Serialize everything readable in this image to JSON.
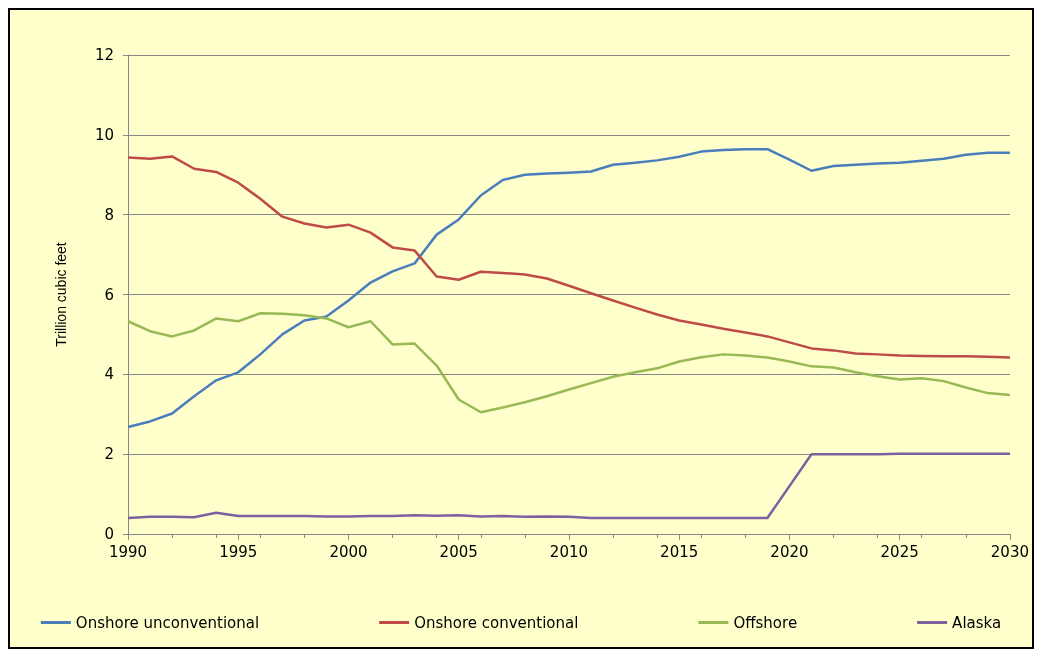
{
  "chart_data": {
    "type": "line",
    "ylabel": "Trillion cubic feet",
    "x": [
      1990,
      1991,
      1992,
      1993,
      1994,
      1995,
      1996,
      1997,
      1998,
      1999,
      2000,
      2001,
      2002,
      2003,
      2004,
      2005,
      2006,
      2007,
      2008,
      2009,
      2010,
      2011,
      2012,
      2013,
      2014,
      2015,
      2016,
      2017,
      2018,
      2019,
      2020,
      2021,
      2022,
      2023,
      2024,
      2025,
      2026,
      2027,
      2028,
      2029,
      2030
    ],
    "series": [
      {
        "name": "Onshore unconventional",
        "color": "#4a7ebb",
        "values": [
          2.68,
          2.82,
          3.02,
          3.45,
          3.85,
          4.05,
          4.5,
          5.0,
          5.35,
          5.45,
          5.85,
          6.3,
          6.58,
          6.78,
          7.5,
          7.88,
          8.48,
          8.87,
          9.0,
          9.03,
          9.05,
          9.08,
          9.25,
          9.3,
          9.36,
          9.45,
          9.58,
          9.62,
          9.64,
          9.64,
          9.38,
          9.1,
          9.22,
          9.25,
          9.28,
          9.3,
          9.35,
          9.4,
          9.5,
          9.55,
          9.55
        ]
      },
      {
        "name": "Onshore conventional",
        "color": "#be4b48",
        "values": [
          9.43,
          9.4,
          9.46,
          9.15,
          9.07,
          8.8,
          8.4,
          7.95,
          7.78,
          7.68,
          7.75,
          7.55,
          7.18,
          7.1,
          6.45,
          6.37,
          6.57,
          6.54,
          6.5,
          6.4,
          6.22,
          6.03,
          5.85,
          5.67,
          5.5,
          5.35,
          5.25,
          5.14,
          5.05,
          4.95,
          4.8,
          4.65,
          4.6,
          4.52,
          4.5,
          4.47,
          4.46,
          4.45,
          4.45,
          4.44,
          4.42
        ]
      },
      {
        "name": "Offshore",
        "color": "#98b954",
        "values": [
          5.33,
          5.08,
          4.95,
          5.1,
          5.4,
          5.33,
          5.53,
          5.52,
          5.48,
          5.4,
          5.18,
          5.33,
          4.75,
          4.77,
          4.22,
          3.37,
          3.05,
          3.17,
          3.3,
          3.45,
          3.62,
          3.78,
          3.94,
          4.05,
          4.15,
          4.32,
          4.43,
          4.5,
          4.47,
          4.42,
          4.32,
          4.2,
          4.17,
          4.05,
          3.95,
          3.87,
          3.9,
          3.83,
          3.67,
          3.53,
          3.48
        ]
      },
      {
        "name": "Alaska",
        "color": "#7d60a0",
        "values": [
          0.4,
          0.43,
          0.43,
          0.42,
          0.53,
          0.45,
          0.45,
          0.45,
          0.45,
          0.44,
          0.44,
          0.45,
          0.45,
          0.47,
          0.46,
          0.47,
          0.44,
          0.45,
          0.43,
          0.44,
          0.43,
          0.4,
          0.4,
          0.4,
          0.4,
          0.4,
          0.4,
          0.4,
          0.4,
          0.4,
          1.2,
          2.0,
          2.0,
          2.0,
          2.0,
          2.01,
          2.01,
          2.01,
          2.01,
          2.01,
          2.01
        ]
      }
    ],
    "xlim": [
      1990,
      2030
    ],
    "xticks": [
      1990,
      1995,
      2000,
      2005,
      2010,
      2015,
      2020,
      2025,
      2030
    ],
    "ylim": [
      0,
      12
    ],
    "yticks": [
      0,
      2,
      4,
      6,
      8,
      10,
      12
    ],
    "grid": "y",
    "legend": "bottom",
    "marker": "none",
    "line_style": "solid"
  }
}
